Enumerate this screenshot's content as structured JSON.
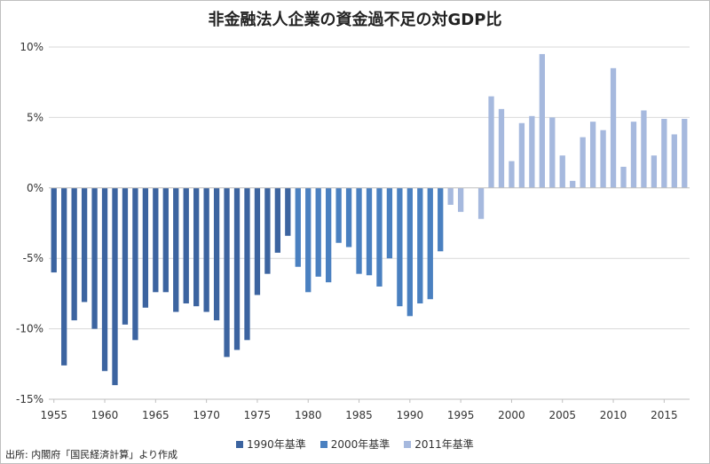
{
  "chart_data": {
    "type": "bar",
    "title": "非金融法人企業の資金過不足の対GDP比",
    "ylim": [
      -15,
      10
    ],
    "yticks": [
      10,
      5,
      0,
      -5,
      -10,
      -15
    ],
    "yticklabels": [
      "10%",
      "5%",
      "0%",
      "-5%",
      "-10%",
      "-15%"
    ],
    "xticks": [
      1955,
      1960,
      1965,
      1970,
      1975,
      1980,
      1985,
      1990,
      1995,
      2000,
      2005,
      2010,
      2015
    ],
    "xlim": [
      1955,
      2017
    ],
    "grid": true,
    "legend_position": "bottom",
    "series": [
      {
        "name": "1990年基準",
        "color": "#3c64a0",
        "x": [
          1955,
          1956,
          1957,
          1958,
          1959,
          1960,
          1961,
          1962,
          1963,
          1964,
          1965,
          1966,
          1967,
          1968,
          1969,
          1970,
          1971,
          1972,
          1973,
          1974,
          1975,
          1976,
          1977,
          1978
        ],
        "values": [
          -6.0,
          -12.6,
          -9.4,
          -8.1,
          -10.0,
          -13.0,
          -14.0,
          -9.7,
          -10.8,
          -8.5,
          -7.4,
          -7.4,
          -8.8,
          -8.2,
          -8.4,
          -8.8,
          -9.4,
          -12.0,
          -11.5,
          -10.8,
          -7.6,
          -6.1,
          -4.6,
          -3.4
        ]
      },
      {
        "name": "2000年基準",
        "color": "#4a80c0",
        "x": [
          1979,
          1980,
          1981,
          1982,
          1983,
          1984,
          1985,
          1986,
          1987,
          1988,
          1989,
          1990,
          1991,
          1992,
          1993
        ],
        "values": [
          -5.6,
          -7.4,
          -6.3,
          -6.7,
          -3.9,
          -4.2,
          -6.1,
          -6.2,
          -7.0,
          -5.0,
          -8.4,
          -9.1,
          -8.2,
          -7.9,
          -4.5
        ]
      },
      {
        "name": "2011年基準",
        "color": "#a6b9de",
        "x": [
          1994,
          1995,
          1997,
          1998,
          1999,
          2000,
          2001,
          2002,
          2003,
          2004,
          2005,
          2006,
          2007,
          2008,
          2009,
          2010,
          2011,
          2012,
          2013,
          2014,
          2015,
          2016,
          2017
        ],
        "values": [
          -1.2,
          -1.7,
          -2.2,
          6.5,
          5.6,
          1.9,
          4.6,
          5.1,
          9.5,
          5.0,
          2.3,
          0.5,
          3.6,
          4.7,
          4.1,
          8.5,
          1.5,
          4.7,
          5.5,
          2.3,
          4.9,
          3.8,
          4.9
        ]
      }
    ]
  },
  "source_note": "出所: 内閣府「国民経済計算」より作成"
}
